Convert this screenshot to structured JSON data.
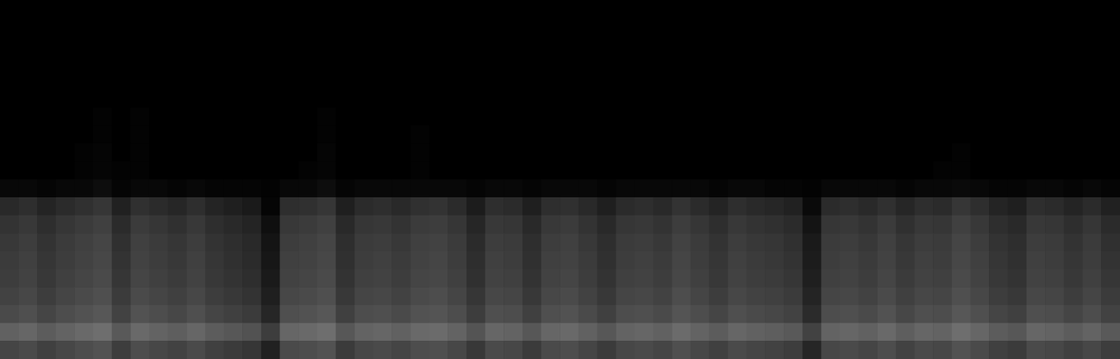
{
  "chart_data": {
    "type": "heatmap",
    "tick_labels": false,
    "color_range": [
      0,
      100
    ],
    "cells": [
      [
        0,
        0,
        0,
        0,
        0,
        0,
        0,
        0,
        0,
        0,
        0,
        0,
        0,
        0,
        0,
        0,
        0,
        0,
        0,
        0,
        0,
        0,
        0,
        0,
        0,
        0,
        0,
        0,
        0,
        0,
        0,
        0,
        0,
        0,
        0,
        0,
        0,
        0,
        0,
        0,
        0,
        0,
        0,
        0,
        0,
        0,
        0,
        0,
        0,
        0,
        0,
        0,
        0,
        0,
        0,
        0,
        0,
        0,
        0,
        0
      ],
      [
        0,
        0,
        0,
        0,
        0,
        0,
        0,
        0,
        0,
        0,
        0,
        0,
        0,
        0,
        0,
        0,
        0,
        0,
        0,
        0,
        0,
        0,
        0,
        0,
        0,
        0,
        0,
        0,
        0,
        0,
        0,
        0,
        0,
        0,
        0,
        0,
        0,
        0,
        0,
        0,
        0,
        0,
        0,
        0,
        0,
        0,
        0,
        0,
        0,
        0,
        0,
        0,
        0,
        0,
        0,
        0,
        0,
        0,
        0,
        0
      ],
      [
        0,
        0,
        0,
        0,
        0,
        0,
        0,
        0,
        0,
        0,
        0,
        0,
        0,
        0,
        0,
        0,
        0,
        0,
        0,
        0,
        0,
        0,
        0,
        0,
        0,
        0,
        0,
        0,
        0,
        0,
        0,
        0,
        0,
        0,
        0,
        0,
        0,
        0,
        0,
        0,
        0,
        0,
        0,
        0,
        0,
        0,
        0,
        0,
        0,
        0,
        0,
        0,
        0,
        0,
        0,
        0,
        0,
        0,
        0,
        0
      ],
      [
        0,
        0,
        0,
        0,
        0,
        0,
        0,
        0,
        0,
        0,
        0,
        0,
        0,
        0,
        0,
        0,
        0,
        0,
        0,
        0,
        0,
        0,
        0,
        0,
        0,
        0,
        0,
        0,
        0,
        0,
        0,
        0,
        0,
        0,
        0,
        0,
        0,
        0,
        0,
        0,
        0,
        0,
        0,
        0,
        0,
        0,
        0,
        0,
        0,
        0,
        0,
        0,
        0,
        0,
        0,
        0,
        0,
        0,
        0,
        0
      ],
      [
        0,
        0,
        0,
        0,
        0,
        0,
        0,
        0,
        0,
        0,
        0,
        0,
        0,
        0,
        0,
        0,
        0,
        0,
        0,
        0,
        0,
        0,
        0,
        0,
        0,
        0,
        0,
        0,
        0,
        0,
        0,
        0,
        0,
        0,
        0,
        0,
        0,
        0,
        0,
        0,
        0,
        0,
        0,
        0,
        0,
        0,
        0,
        0,
        0,
        0,
        0,
        0,
        0,
        0,
        0,
        0,
        0,
        0,
        0,
        0
      ],
      [
        0,
        0,
        0,
        0,
        0,
        0,
        0,
        0,
        0,
        0,
        0,
        0,
        0,
        0,
        0,
        0,
        0,
        0,
        0,
        0,
        0,
        0,
        0,
        0,
        0,
        0,
        0,
        0,
        0,
        0,
        0,
        0,
        0,
        0,
        0,
        0,
        0,
        0,
        0,
        0,
        0,
        0,
        0,
        0,
        0,
        0,
        0,
        0,
        0,
        0,
        0,
        0,
        0,
        0,
        0,
        0,
        0,
        0,
        0,
        0
      ],
      [
        0,
        0,
        0,
        0,
        0,
        1,
        0,
        1,
        0,
        0,
        0,
        0,
        0,
        0,
        0,
        0,
        0,
        1,
        0,
        0,
        0,
        0,
        0,
        0,
        0,
        0,
        0,
        0,
        0,
        0,
        0,
        0,
        0,
        0,
        0,
        0,
        0,
        0,
        0,
        0,
        0,
        0,
        0,
        0,
        0,
        0,
        0,
        0,
        0,
        0,
        0,
        0,
        0,
        0,
        0,
        0,
        0,
        0,
        0,
        0
      ],
      [
        0,
        0,
        0,
        0,
        0,
        1,
        0,
        1,
        0,
        0,
        0,
        0,
        0,
        0,
        0,
        0,
        0,
        1,
        0,
        0,
        0,
        0,
        1,
        0,
        0,
        0,
        0,
        0,
        0,
        0,
        0,
        0,
        0,
        0,
        0,
        0,
        0,
        0,
        0,
        0,
        0,
        0,
        0,
        0,
        0,
        0,
        0,
        0,
        0,
        0,
        0,
        0,
        0,
        0,
        0,
        0,
        0,
        0,
        0,
        0
      ],
      [
        0,
        0,
        0,
        0,
        1,
        2,
        0,
        1,
        0,
        0,
        0,
        0,
        0,
        0,
        0,
        0,
        0,
        2,
        0,
        0,
        0,
        0,
        1,
        0,
        0,
        0,
        0,
        0,
        0,
        0,
        0,
        0,
        0,
        0,
        0,
        0,
        0,
        0,
        0,
        0,
        0,
        0,
        0,
        0,
        0,
        0,
        0,
        0,
        0,
        0,
        0,
        1,
        0,
        0,
        0,
        0,
        0,
        0,
        0,
        0
      ],
      [
        0,
        0,
        0,
        0,
        1,
        2,
        1,
        1,
        0,
        0,
        0,
        0,
        0,
        0,
        0,
        0,
        1,
        2,
        0,
        0,
        0,
        0,
        1,
        0,
        0,
        0,
        0,
        0,
        0,
        0,
        0,
        0,
        0,
        0,
        0,
        0,
        0,
        0,
        0,
        0,
        0,
        0,
        0,
        0,
        0,
        0,
        0,
        0,
        0,
        0,
        1,
        1,
        0,
        0,
        0,
        0,
        0,
        0,
        0,
        0
      ],
      [
        3,
        3,
        2,
        3,
        3,
        5,
        2,
        3,
        3,
        2,
        3,
        2,
        2,
        2,
        1,
        3,
        3,
        5,
        2,
        3,
        3,
        3,
        3,
        3,
        3,
        2,
        3,
        3,
        2,
        3,
        3,
        3,
        2,
        3,
        3,
        3,
        3,
        3,
        2,
        3,
        3,
        2,
        2,
        1,
        3,
        3,
        3,
        3,
        2,
        3,
        3,
        4,
        3,
        2,
        2,
        3,
        3,
        2,
        3,
        2
      ],
      [
        16,
        18,
        14,
        17,
        19,
        21,
        13,
        19,
        17,
        15,
        18,
        14,
        12,
        10,
        2,
        18,
        19,
        21,
        12,
        17,
        18,
        16,
        19,
        20,
        17,
        11,
        18,
        17,
        12,
        18,
        19,
        16,
        12,
        17,
        18,
        16,
        20,
        17,
        14,
        18,
        16,
        15,
        13,
        4,
        17,
        18,
        16,
        19,
        15,
        18,
        17,
        21,
        18,
        14,
        12,
        18,
        17,
        14,
        17,
        13
      ],
      [
        20,
        22,
        18,
        21,
        23,
        25,
        17,
        23,
        21,
        19,
        22,
        18,
        16,
        14,
        6,
        22,
        23,
        25,
        16,
        21,
        22,
        20,
        23,
        24,
        21,
        15,
        22,
        21,
        16,
        22,
        23,
        20,
        16,
        21,
        22,
        20,
        24,
        21,
        18,
        22,
        20,
        19,
        17,
        8,
        21,
        22,
        20,
        23,
        19,
        22,
        21,
        25,
        22,
        18,
        16,
        22,
        21,
        18,
        21,
        17
      ],
      [
        22,
        24,
        20,
        23,
        25,
        27,
        19,
        25,
        23,
        21,
        24,
        20,
        18,
        16,
        8,
        24,
        25,
        27,
        18,
        23,
        24,
        22,
        25,
        26,
        23,
        17,
        24,
        23,
        18,
        24,
        25,
        22,
        18,
        23,
        24,
        22,
        26,
        23,
        20,
        24,
        22,
        21,
        19,
        10,
        23,
        24,
        22,
        25,
        21,
        24,
        23,
        27,
        24,
        20,
        18,
        24,
        23,
        20,
        23,
        19
      ],
      [
        23,
        25,
        21,
        24,
        26,
        28,
        20,
        26,
        24,
        22,
        25,
        21,
        19,
        17,
        9,
        25,
        26,
        28,
        19,
        24,
        25,
        23,
        26,
        27,
        24,
        18,
        25,
        24,
        19,
        25,
        26,
        23,
        19,
        24,
        25,
        23,
        27,
        24,
        21,
        25,
        23,
        22,
        20,
        11,
        24,
        25,
        23,
        26,
        22,
        25,
        24,
        28,
        25,
        21,
        19,
        25,
        24,
        21,
        24,
        20
      ],
      [
        24,
        26,
        22,
        25,
        27,
        29,
        21,
        27,
        25,
        23,
        26,
        22,
        20,
        18,
        10,
        26,
        27,
        29,
        20,
        25,
        26,
        24,
        27,
        28,
        25,
        19,
        26,
        25,
        20,
        26,
        27,
        24,
        20,
        25,
        26,
        24,
        28,
        25,
        22,
        26,
        24,
        23,
        21,
        12,
        25,
        26,
        24,
        27,
        23,
        26,
        25,
        29,
        26,
        22,
        20,
        26,
        25,
        22,
        25,
        21
      ],
      [
        26,
        28,
        24,
        27,
        29,
        31,
        23,
        29,
        27,
        25,
        28,
        24,
        22,
        20,
        12,
        28,
        29,
        31,
        22,
        27,
        28,
        26,
        29,
        30,
        27,
        21,
        28,
        27,
        22,
        28,
        29,
        26,
        22,
        27,
        28,
        26,
        30,
        27,
        24,
        28,
        26,
        25,
        23,
        14,
        27,
        28,
        26,
        29,
        25,
        28,
        27,
        31,
        28,
        24,
        22,
        28,
        27,
        24,
        27,
        23
      ],
      [
        29,
        31,
        27,
        30,
        32,
        34,
        26,
        32,
        30,
        28,
        31,
        27,
        25,
        23,
        15,
        31,
        32,
        34,
        25,
        30,
        31,
        29,
        32,
        33,
        30,
        24,
        31,
        30,
        25,
        31,
        32,
        29,
        25,
        30,
        31,
        29,
        33,
        30,
        27,
        31,
        29,
        28,
        26,
        17,
        30,
        31,
        29,
        32,
        28,
        31,
        30,
        34,
        31,
        27,
        25,
        31,
        30,
        27,
        30,
        26
      ],
      [
        38,
        40,
        36,
        39,
        41,
        43,
        35,
        41,
        39,
        37,
        40,
        36,
        34,
        32,
        24,
        40,
        41,
        43,
        34,
        39,
        40,
        38,
        41,
        42,
        39,
        33,
        40,
        39,
        34,
        40,
        41,
        38,
        34,
        39,
        40,
        38,
        42,
        39,
        36,
        40,
        38,
        37,
        35,
        26,
        39,
        40,
        38,
        41,
        37,
        40,
        39,
        43,
        40,
        36,
        34,
        40,
        39,
        36,
        39,
        35
      ],
      [
        27,
        29,
        25,
        28,
        30,
        32,
        24,
        30,
        28,
        26,
        29,
        25,
        23,
        21,
        13,
        29,
        30,
        32,
        23,
        28,
        29,
        27,
        30,
        31,
        28,
        22,
        29,
        28,
        23,
        29,
        30,
        27,
        23,
        28,
        29,
        27,
        31,
        28,
        25,
        29,
        27,
        26,
        24,
        15,
        28,
        29,
        27,
        30,
        26,
        29,
        28,
        32,
        29,
        25,
        23,
        29,
        28,
        25,
        28,
        24
      ]
    ]
  }
}
